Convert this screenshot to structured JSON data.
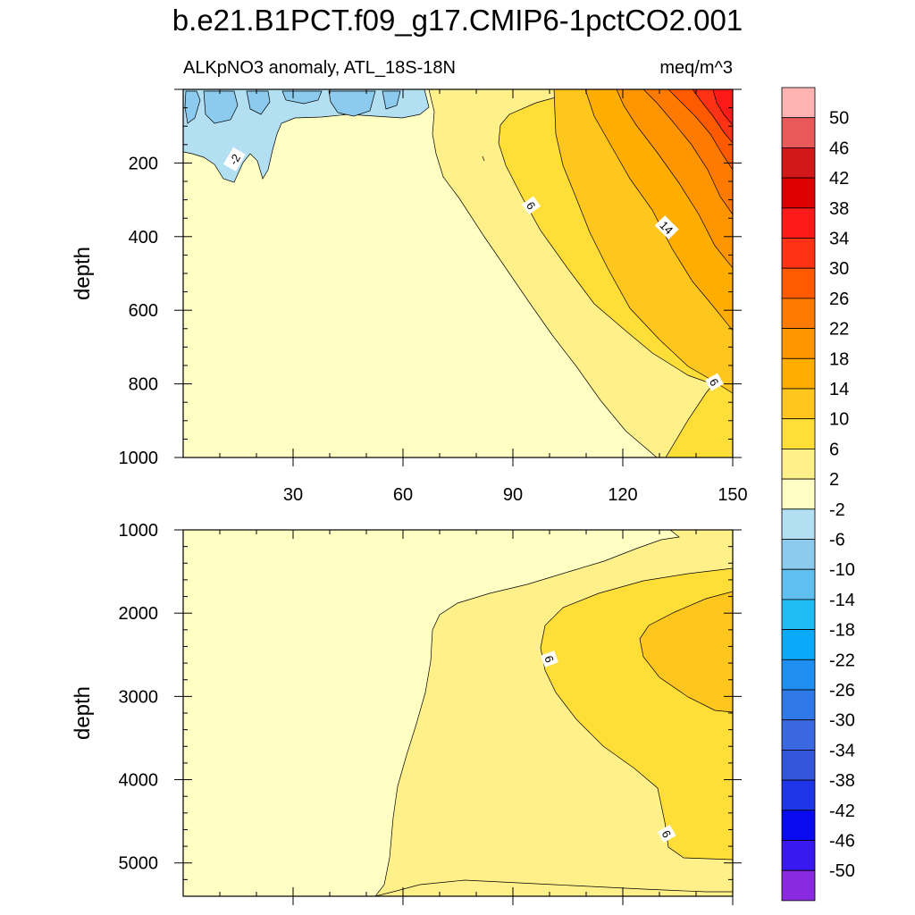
{
  "chart_data": {
    "type": "contour",
    "title": "b.e21.B1PCT.f09_g17.CMIP6-1pctCO2.001",
    "variable_label": "ALKpNO3 anomaly, ATL_18S-18N",
    "units": "meq/m^3",
    "colorbar": {
      "levels": [
        "50",
        "46",
        "42",
        "38",
        "34",
        "30",
        "26",
        "22",
        "18",
        "14",
        "10",
        "6",
        "2",
        "-2",
        "-6",
        "-10",
        "-14",
        "-18",
        "-22",
        "-26",
        "-30",
        "-34",
        "-38",
        "-42",
        "-46",
        "-50"
      ],
      "colors": [
        "#ffb3b3",
        "#e85a5a",
        "#d21818",
        "#de0000",
        "#ff1a1a",
        "#ff3216",
        "#ff5a00",
        "#ff7a00",
        "#ff9500",
        "#ffae00",
        "#ffc61e",
        "#ffde38",
        "#fff08a",
        "#ffffc4",
        "#b2dff2",
        "#8ccbee",
        "#5fc0f0",
        "#1fbcf3",
        "#0aaaf8",
        "#1e8ef0",
        "#2e78e8",
        "#3a68e0",
        "#3454da",
        "#1e36e8",
        "#0a0af0",
        "#3a18f0",
        "#8a2ae0"
      ]
    },
    "panels": [
      {
        "name": "upper",
        "ylabel": "depth",
        "xlim": [
          0,
          150
        ],
        "ylim": [
          1000,
          0
        ],
        "xticks": [
          "30",
          "60",
          "90",
          "120",
          "150"
        ],
        "yticks": [
          "200",
          "400",
          "600",
          "800",
          "1000"
        ],
        "contour_labels": [
          {
            "text": "-2",
            "x": 14,
            "y": 190,
            "rotate": -60
          },
          {
            "text": "6",
            "x": 95,
            "y": 315,
            "rotate": 55
          },
          {
            "text": "14",
            "x": 132,
            "y": 375,
            "rotate": 45
          },
          {
            "text": "6",
            "x": 145,
            "y": 795,
            "rotate": 60
          }
        ]
      },
      {
        "name": "lower",
        "ylabel": "depth",
        "xlim": [
          0,
          150
        ],
        "ylim": [
          5400,
          1000
        ],
        "xticks": [],
        "yticks": [
          "1000",
          "2000",
          "3000",
          "4000",
          "5000"
        ],
        "contour_labels": [
          {
            "text": "6",
            "x": 100,
            "y": 2550,
            "rotate": 70
          },
          {
            "text": "6",
            "x": 132,
            "y": 4650,
            "rotate": 60
          }
        ]
      }
    ]
  }
}
